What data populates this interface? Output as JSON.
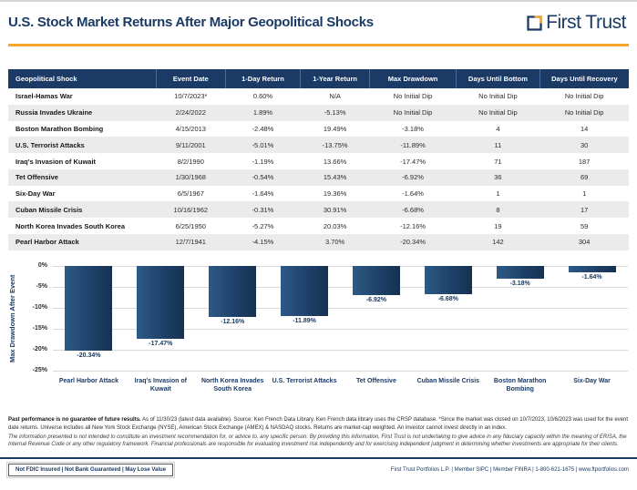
{
  "header": {
    "title": "U.S. Stock Market Returns After Major Geopolitical Shocks",
    "logo_text": "First Trust"
  },
  "table": {
    "columns": [
      "Geopolitical Shock",
      "Event Date",
      "1-Day Return",
      "1-Year Return",
      "Max Drawdown",
      "Days Until Bottom",
      "Days Until Recovery"
    ],
    "rows": [
      [
        "Israel-Hamas War",
        "10/7/2023*",
        "0.60%",
        "N/A",
        "No Initial Dip",
        "No Initial Dip",
        "No Initial Dip"
      ],
      [
        "Russia Invades Ukraine",
        "2/24/2022",
        "1.89%",
        "-5.13%",
        "No Initial Dip",
        "No Initial Dip",
        "No Initial Dip"
      ],
      [
        "Boston Marathon Bombing",
        "4/15/2013",
        "-2.48%",
        "19.49%",
        "-3.18%",
        "4",
        "14"
      ],
      [
        "U.S. Terrorist Attacks",
        "9/11/2001",
        "-5.01%",
        "-13.75%",
        "-11.89%",
        "11",
        "30"
      ],
      [
        "Iraq's Invasion of Kuwait",
        "8/2/1990",
        "-1.19%",
        "13.66%",
        "-17.47%",
        "71",
        "187"
      ],
      [
        "Tet Offensive",
        "1/30/1968",
        "-0.54%",
        "15.43%",
        "-6.92%",
        "36",
        "69"
      ],
      [
        "Six-Day War",
        "6/5/1967",
        "-1.64%",
        "19.36%",
        "-1.64%",
        "1",
        "1"
      ],
      [
        "Cuban Missile Crisis",
        "10/16/1962",
        "-0.31%",
        "30.91%",
        "-6.68%",
        "8",
        "17"
      ],
      [
        "North Korea Invades South Korea",
        "6/25/1950",
        "-5.27%",
        "20.03%",
        "-12.16%",
        "19",
        "59"
      ],
      [
        "Pearl Harbor Attack",
        "12/7/1941",
        "-4.15%",
        "3.70%",
        "-20.34%",
        "142",
        "304"
      ]
    ]
  },
  "chart_data": {
    "type": "bar",
    "title": "",
    "xlabel": "",
    "ylabel": "Max Drawdown After Event",
    "categories": [
      "Pearl Harbor Attack",
      "Iraq's Invasion of Kuwait",
      "North Korea Invades South Korea",
      "U.S. Terrorist Attacks",
      "Tet Offensive",
      "Cuban Missile Crisis",
      "Boston Marathon Bombing",
      "Six-Day War"
    ],
    "values": [
      -20.34,
      -17.47,
      -12.16,
      -11.89,
      -6.92,
      -6.68,
      -3.18,
      -1.64
    ],
    "bar_labels": [
      "-20.34%",
      "-17.47%",
      "-12.16%",
      "-11.89%",
      "-6.92%",
      "-6.68%",
      "-3.18%",
      "-1.64%"
    ],
    "y_ticks": [
      "0%",
      "-5%",
      "-10%",
      "-15%",
      "-20%",
      "-25%"
    ],
    "ylim": [
      0,
      -25
    ],
    "grid": "horizontal",
    "legend": "none",
    "bar_color": "#1c3a66"
  },
  "footnotes": {
    "lead": "Past performance is no guarantee of future results.",
    "para1_rest": "As of 11/30/23 (latest data available). Source: Ken French Data Library. Ken French data library uses the CRSP database. *Since the market was closed on 10/7/2023, 10/6/2023 was used for the event date returns. Universe includes all New York Stock Exchange (NYSE), American Stock Exchange (AMEX) & NASDAQ stocks. Returns are market-cap weighted. An investor cannot invest directly in an index.",
    "para2": "The information presented is not intended to constitute an investment recommendation for, or advice to, any specific person. By providing this information, First Trust is not undertaking to give advice in any fiduciary capacity within the meaning of ERISA, the Internal Revenue Code or any other regulatory framework. Financial professionals are responsible for evaluating investment risk independently and for exercising independent judgment in determining whether investments are appropriate for their clients.",
    "colors": {
      "navy": "#1b3a64",
      "orange": "#f7a528"
    }
  },
  "footer": {
    "disclaimer": "Not FDIC Insured | Not Bank Guaranteed | May Lose Value",
    "contact": "First Trust Portfolios L.P. | Member SIPC | Member FINRA | 1-800-621-1675 | www.ftportfolios.com"
  }
}
